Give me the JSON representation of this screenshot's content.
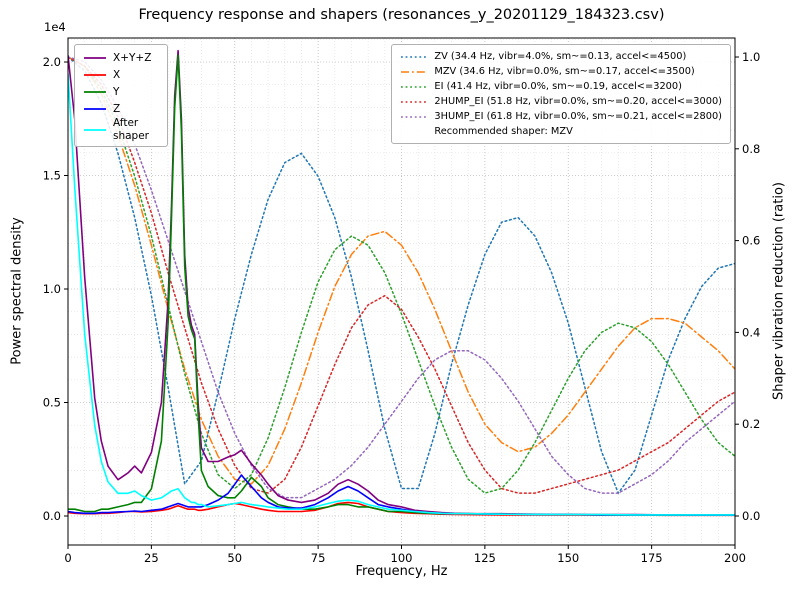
{
  "title": "Frequency response and shapers (resonances_y_20201129_184323.csv)",
  "axes": {
    "x": {
      "label": "Frequency, Hz",
      "min": 0,
      "max": 200,
      "ticks": [
        "0",
        "25",
        "50",
        "75",
        "100",
        "125",
        "150",
        "175",
        "200"
      ],
      "minor_step": 5
    },
    "y_left": {
      "label": "Power spectral density",
      "multiplier": "1e4",
      "ticks": [
        "0.0",
        "0.5",
        "1.0",
        "1.5",
        "2.0"
      ],
      "lim": [
        -0.13,
        2.11
      ],
      "grid": true
    },
    "y_right": {
      "label": "Shaper vibration reduction (ratio)",
      "ticks": [
        "0.0",
        "0.2",
        "0.4",
        "0.6",
        "0.8",
        "1.0"
      ],
      "lim": [
        -0.06,
        1.04
      ]
    }
  },
  "chart_data": {
    "type": "line",
    "title": "Frequency response and shapers (resonances_y_20201129_184323.csv)",
    "xlabel": "Frequency, Hz",
    "ylabel_left": "Power spectral density (1e4)",
    "ylabel_right": "Shaper vibration reduction (ratio)",
    "xlim": [
      0,
      200
    ],
    "grid": true,
    "legend_positions": {
      "psd": "upper left",
      "shapers": "upper right"
    },
    "x_psd": [
      0,
      2,
      5,
      8,
      10,
      12,
      15,
      18,
      20,
      22,
      25,
      28,
      30,
      31,
      32,
      33,
      34,
      35,
      36,
      37,
      38,
      39,
      40,
      42,
      45,
      48,
      50,
      52,
      55,
      58,
      60,
      63,
      66,
      70,
      74,
      78,
      81,
      84,
      87,
      90,
      93,
      96,
      100,
      104,
      108,
      112,
      116,
      120,
      130,
      140,
      150,
      160,
      170,
      180,
      190,
      200
    ],
    "psd_series": [
      {
        "name": "xyz",
        "label": "X+Y+Z",
        "color": "#800080",
        "axis": "left",
        "values": [
          2.03,
          1.75,
          1.05,
          0.52,
          0.33,
          0.22,
          0.16,
          0.19,
          0.22,
          0.19,
          0.28,
          0.5,
          0.95,
          1.35,
          1.85,
          2.05,
          1.75,
          1.15,
          0.92,
          0.84,
          0.8,
          0.5,
          0.3,
          0.24,
          0.24,
          0.26,
          0.27,
          0.29,
          0.23,
          0.18,
          0.14,
          0.09,
          0.07,
          0.06,
          0.07,
          0.1,
          0.14,
          0.16,
          0.14,
          0.11,
          0.07,
          0.05,
          0.04,
          0.025,
          0.02,
          0.015,
          0.012,
          0.01,
          0.01,
          0.008,
          0.007,
          0.006,
          0.006,
          0.005,
          0.005,
          0.005
        ]
      },
      {
        "name": "x",
        "label": "X",
        "color": "#ff0000",
        "axis": "left",
        "values": [
          0.015,
          0.012,
          0.01,
          0.01,
          0.012,
          0.012,
          0.015,
          0.02,
          0.02,
          0.018,
          0.02,
          0.025,
          0.03,
          0.035,
          0.04,
          0.045,
          0.04,
          0.035,
          0.03,
          0.03,
          0.03,
          0.025,
          0.025,
          0.03,
          0.04,
          0.05,
          0.055,
          0.05,
          0.04,
          0.03,
          0.025,
          0.02,
          0.02,
          0.02,
          0.025,
          0.04,
          0.055,
          0.06,
          0.055,
          0.04,
          0.03,
          0.02,
          0.015,
          0.012,
          0.01,
          0.008,
          0.007,
          0.006,
          0.005,
          0.005,
          0.004,
          0.004,
          0.004,
          0.003,
          0.003,
          0.003
        ]
      },
      {
        "name": "y",
        "label": "Y",
        "color": "#008000",
        "axis": "left",
        "values": [
          0.03,
          0.03,
          0.02,
          0.02,
          0.03,
          0.03,
          0.04,
          0.05,
          0.06,
          0.06,
          0.12,
          0.33,
          0.85,
          1.3,
          1.8,
          2.03,
          1.7,
          1.1,
          0.88,
          0.82,
          0.78,
          0.45,
          0.2,
          0.13,
          0.09,
          0.08,
          0.08,
          0.11,
          0.17,
          0.13,
          0.08,
          0.05,
          0.04,
          0.03,
          0.03,
          0.04,
          0.05,
          0.05,
          0.04,
          0.04,
          0.03,
          0.02,
          0.02,
          0.015,
          0.012,
          0.01,
          0.01,
          0.01,
          0.008,
          0.007,
          0.006,
          0.005,
          0.005,
          0.004,
          0.004,
          0.004
        ]
      },
      {
        "name": "z",
        "label": "Z",
        "color": "#0000ff",
        "axis": "left",
        "values": [
          0.02,
          0.015,
          0.012,
          0.012,
          0.015,
          0.015,
          0.018,
          0.02,
          0.022,
          0.02,
          0.025,
          0.03,
          0.04,
          0.045,
          0.05,
          0.055,
          0.05,
          0.045,
          0.04,
          0.04,
          0.04,
          0.04,
          0.04,
          0.05,
          0.07,
          0.1,
          0.14,
          0.18,
          0.13,
          0.08,
          0.06,
          0.04,
          0.035,
          0.035,
          0.05,
          0.08,
          0.11,
          0.13,
          0.11,
          0.08,
          0.05,
          0.04,
          0.03,
          0.02,
          0.015,
          0.012,
          0.01,
          0.01,
          0.008,
          0.007,
          0.006,
          0.005,
          0.005,
          0.005,
          0.004,
          0.004
        ]
      },
      {
        "name": "after-shaper",
        "label": "After shaper",
        "color": "#00ffff",
        "axis": "left",
        "values": [
          1.95,
          1.45,
          0.8,
          0.4,
          0.24,
          0.15,
          0.1,
          0.1,
          0.11,
          0.09,
          0.07,
          0.08,
          0.1,
          0.11,
          0.115,
          0.12,
          0.1,
          0.08,
          0.07,
          0.06,
          0.06,
          0.05,
          0.05,
          0.04,
          0.045,
          0.05,
          0.055,
          0.06,
          0.05,
          0.045,
          0.04,
          0.035,
          0.03,
          0.03,
          0.04,
          0.055,
          0.065,
          0.07,
          0.065,
          0.05,
          0.04,
          0.03,
          0.025,
          0.02,
          0.015,
          0.012,
          0.01,
          0.01,
          0.008,
          0.007,
          0.006,
          0.006,
          0.005,
          0.005,
          0.005,
          0.005
        ]
      }
    ],
    "x_shaper": [
      0,
      5,
      10,
      15,
      20,
      25,
      30,
      35,
      40,
      45,
      50,
      55,
      60,
      65,
      70,
      75,
      80,
      85,
      90,
      95,
      100,
      105,
      110,
      115,
      120,
      125,
      130,
      135,
      140,
      145,
      150,
      155,
      160,
      165,
      170,
      175,
      180,
      185,
      190,
      195,
      200
    ],
    "shaper_series": [
      {
        "name": "zv",
        "label": "ZV (34.4 Hz, vibr=4.0%, sm~=0.13, accel<=4500)",
        "color": "#1f77b4",
        "dash": "dotted",
        "axis": "right",
        "values": [
          1.0,
          0.97,
          0.9,
          0.79,
          0.65,
          0.48,
          0.28,
          0.07,
          0.12,
          0.27,
          0.43,
          0.57,
          0.69,
          0.77,
          0.79,
          0.74,
          0.65,
          0.52,
          0.36,
          0.19,
          0.06,
          0.06,
          0.18,
          0.33,
          0.46,
          0.57,
          0.64,
          0.65,
          0.61,
          0.53,
          0.42,
          0.28,
          0.14,
          0.05,
          0.1,
          0.22,
          0.34,
          0.43,
          0.5,
          0.54,
          0.55
        ]
      },
      {
        "name": "mzv",
        "label": "MZV (34.6 Hz, vibr=0.0%, sm~=0.17, accel<=3500)",
        "color": "#ff7f0e",
        "dash": "dashdot",
        "axis": "right",
        "values": [
          1.0,
          0.98,
          0.92,
          0.83,
          0.72,
          0.59,
          0.45,
          0.32,
          0.21,
          0.13,
          0.08,
          0.07,
          0.11,
          0.19,
          0.29,
          0.4,
          0.5,
          0.57,
          0.61,
          0.62,
          0.59,
          0.53,
          0.45,
          0.36,
          0.27,
          0.2,
          0.16,
          0.14,
          0.15,
          0.18,
          0.22,
          0.27,
          0.32,
          0.37,
          0.41,
          0.43,
          0.43,
          0.42,
          0.39,
          0.36,
          0.32
        ]
      },
      {
        "name": "ei",
        "label": "EI (41.4 Hz, vibr=0.0%, sm~=0.19, accel<=3200)",
        "color": "#2ca02c",
        "dash": "dotted",
        "axis": "right",
        "values": [
          1.0,
          0.98,
          0.93,
          0.85,
          0.74,
          0.61,
          0.46,
          0.31,
          0.18,
          0.09,
          0.06,
          0.09,
          0.17,
          0.28,
          0.4,
          0.51,
          0.58,
          0.61,
          0.59,
          0.53,
          0.44,
          0.34,
          0.24,
          0.15,
          0.08,
          0.05,
          0.06,
          0.1,
          0.16,
          0.23,
          0.3,
          0.36,
          0.4,
          0.42,
          0.41,
          0.38,
          0.33,
          0.27,
          0.21,
          0.16,
          0.13
        ]
      },
      {
        "name": "2hump-ei",
        "label": "2HUMP_EI (51.8 Hz, vibr=0.0%, sm~=0.20, accel<=3000)",
        "color": "#d62728",
        "dash": "dotted",
        "axis": "right",
        "values": [
          1.0,
          0.98,
          0.94,
          0.87,
          0.77,
          0.66,
          0.53,
          0.41,
          0.29,
          0.19,
          0.11,
          0.06,
          0.05,
          0.08,
          0.15,
          0.24,
          0.33,
          0.41,
          0.46,
          0.48,
          0.45,
          0.39,
          0.32,
          0.24,
          0.16,
          0.1,
          0.06,
          0.05,
          0.05,
          0.06,
          0.07,
          0.08,
          0.09,
          0.1,
          0.12,
          0.14,
          0.16,
          0.19,
          0.22,
          0.25,
          0.27
        ]
      },
      {
        "name": "3hump-ei",
        "label": "3HUMP_EI (61.8 Hz, vibr=0.0%, sm~=0.21, accel<=2800)",
        "color": "#9467bd",
        "dash": "dotted",
        "axis": "right",
        "values": [
          1.0,
          0.99,
          0.95,
          0.89,
          0.81,
          0.71,
          0.6,
          0.49,
          0.38,
          0.27,
          0.18,
          0.11,
          0.06,
          0.04,
          0.04,
          0.06,
          0.08,
          0.11,
          0.15,
          0.2,
          0.25,
          0.3,
          0.34,
          0.36,
          0.36,
          0.34,
          0.3,
          0.25,
          0.19,
          0.13,
          0.09,
          0.06,
          0.05,
          0.05,
          0.07,
          0.09,
          0.12,
          0.16,
          0.19,
          0.22,
          0.25
        ]
      }
    ],
    "recommended_label": "Recommended shaper: MZV"
  },
  "colors": {
    "grid_major": "#bdbdbd",
    "grid_minor": "#e2e2e2",
    "frame": "#000000",
    "background": "#ffffff"
  }
}
